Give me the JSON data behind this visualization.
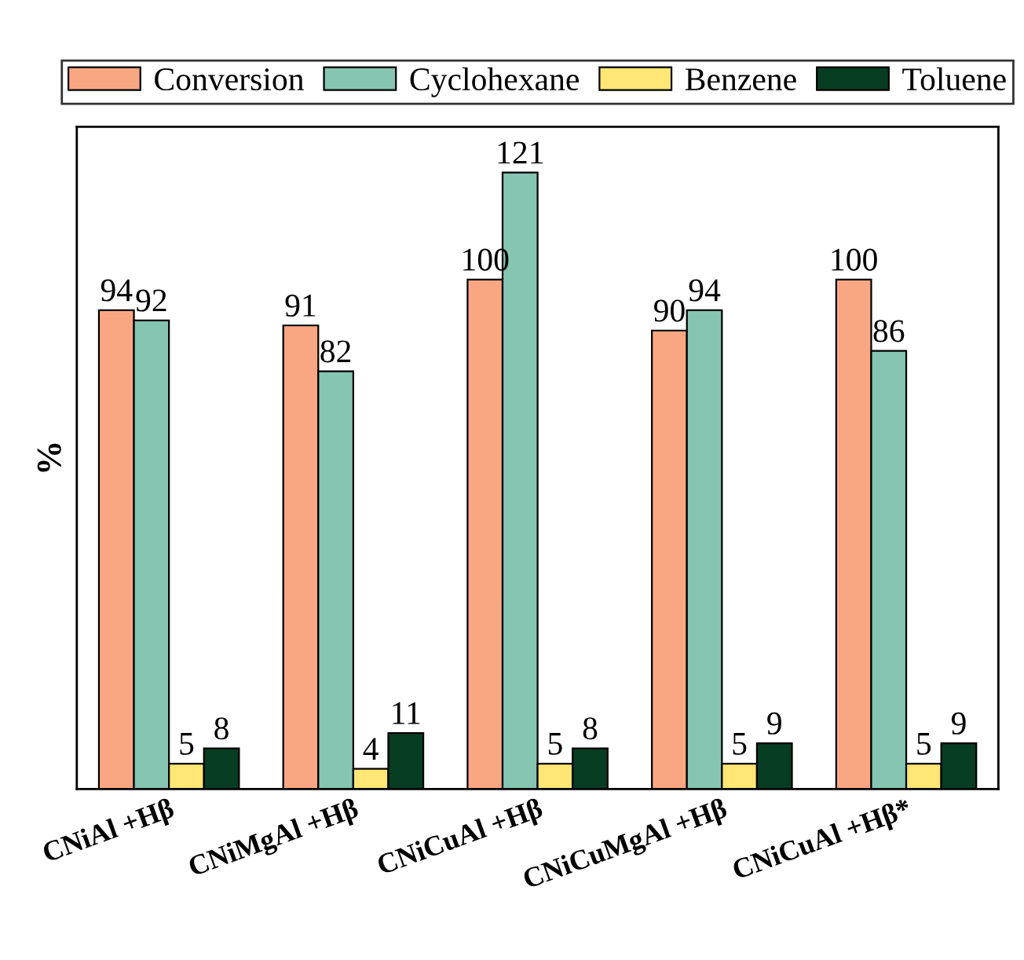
{
  "chart_data": {
    "type": "bar",
    "ylabel": "%",
    "categories": [
      "CNiAl +Hβ",
      "CNiMgAl +Hβ",
      "CNiCuAl +Hβ",
      "CNiCuMgAl +Hβ",
      "CNiCuAl +Hβ*"
    ],
    "series": [
      {
        "name": "Conversion",
        "color": "#f9a783",
        "values": [
          94,
          91,
          100,
          90,
          100
        ]
      },
      {
        "name": "Cyclohexane",
        "color": "#86c5b1",
        "values": [
          92,
          82,
          121,
          94,
          86
        ]
      },
      {
        "name": "Benzene",
        "color": "#ffe675",
        "values": [
          5,
          4,
          5,
          5,
          5
        ]
      },
      {
        "name": "Toluene",
        "color": "#073d22",
        "values": [
          8,
          11,
          8,
          9,
          9
        ]
      }
    ],
    "ylim": [
      0,
      130
    ],
    "tick_labels": "x",
    "data_labels": true,
    "legend": "top",
    "grid": false
  }
}
